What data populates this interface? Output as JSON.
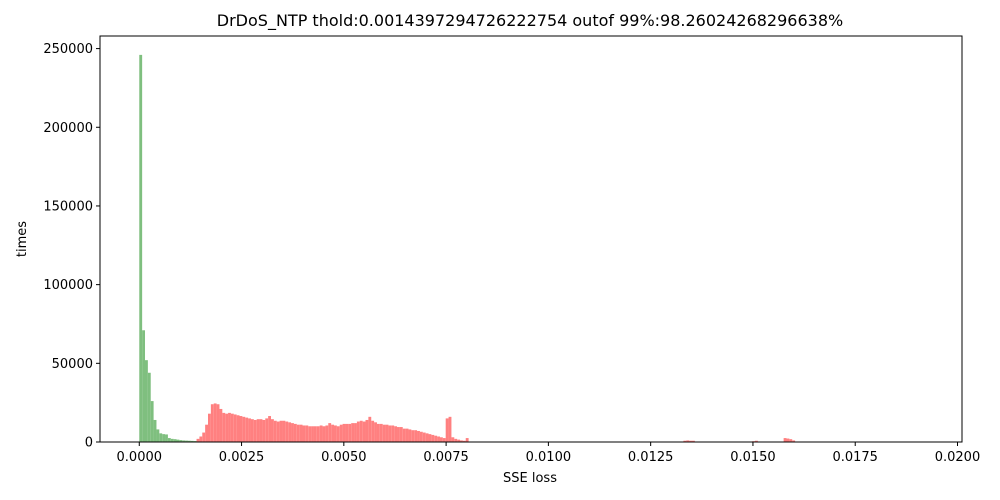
{
  "chart_data": {
    "type": "bar",
    "title": "DrDoS_NTP thold:0.0014397294726222754 outof 99%:98.26024268296638%",
    "xlabel": "SSE loss",
    "ylabel": "times",
    "xlim": [
      -0.00096,
      0.02011
    ],
    "ylim": [
      0,
      258000
    ],
    "bin_width": 7e-05,
    "x_ticks": [
      {
        "value": 0.0,
        "label": "0.0000"
      },
      {
        "value": 0.0025,
        "label": "0.0025"
      },
      {
        "value": 0.005,
        "label": "0.0050"
      },
      {
        "value": 0.0075,
        "label": "0.0075"
      },
      {
        "value": 0.01,
        "label": "0.0100"
      },
      {
        "value": 0.0125,
        "label": "0.0125"
      },
      {
        "value": 0.015,
        "label": "0.0150"
      },
      {
        "value": 0.0175,
        "label": "0.0175"
      },
      {
        "value": 0.02,
        "label": "0.0200"
      }
    ],
    "y_ticks": [
      {
        "value": 0,
        "label": "0"
      },
      {
        "value": 50000,
        "label": "50000"
      },
      {
        "value": 100000,
        "label": "100000"
      },
      {
        "value": 150000,
        "label": "150000"
      },
      {
        "value": 200000,
        "label": "200000"
      },
      {
        "value": 250000,
        "label": "250000"
      }
    ],
    "colors": {
      "normal": "#7fbf7f",
      "attack": "#ff8080"
    },
    "grid": false,
    "series": [
      {
        "key": "normal",
        "x": [
          0.0,
          7e-05,
          0.00014,
          0.00021,
          0.00028,
          0.00035,
          0.00042,
          0.00049,
          0.00056,
          0.00063,
          0.0007,
          0.00077,
          0.00084,
          0.00091,
          0.00098,
          0.00105,
          0.00112,
          0.00119,
          0.00126,
          0.00133,
          0.0014
        ],
        "values": [
          246000,
          71000,
          52000,
          44000,
          26000,
          14000,
          8000,
          5500,
          5000,
          4800,
          2500,
          2000,
          1800,
          1500,
          1200,
          1000,
          900,
          800,
          700,
          600,
          500
        ]
      },
      {
        "key": "attack",
        "x": [
          0.0014,
          0.00147,
          0.00154,
          0.00161,
          0.00168,
          0.00175,
          0.00182,
          0.00189,
          0.00196,
          0.00203,
          0.0021,
          0.00217,
          0.00224,
          0.00231,
          0.00238,
          0.00245,
          0.00252,
          0.00259,
          0.00266,
          0.00273,
          0.0028,
          0.00287,
          0.00294,
          0.00301,
          0.00308,
          0.00315,
          0.00322,
          0.00329,
          0.00336,
          0.00343,
          0.0035,
          0.00357,
          0.00364,
          0.00371,
          0.00378,
          0.00385,
          0.00392,
          0.00399,
          0.00406,
          0.00413,
          0.0042,
          0.00427,
          0.00434,
          0.00441,
          0.00448,
          0.00455,
          0.00462,
          0.00469,
          0.00476,
          0.00483,
          0.0049,
          0.00497,
          0.00504,
          0.00511,
          0.00518,
          0.00525,
          0.00532,
          0.00539,
          0.00546,
          0.00553,
          0.0056,
          0.00567,
          0.00574,
          0.00581,
          0.00588,
          0.00595,
          0.00602,
          0.00609,
          0.00616,
          0.00623,
          0.0063,
          0.00637,
          0.00644,
          0.00651,
          0.00658,
          0.00665,
          0.00672,
          0.00679,
          0.00686,
          0.00693,
          0.007,
          0.00707,
          0.00714,
          0.00721,
          0.00728,
          0.00735,
          0.00742,
          0.00749,
          0.00756,
          0.00763,
          0.0077,
          0.00777,
          0.00784,
          0.00791,
          0.00798,
          0.0133,
          0.01337,
          0.01344,
          0.01351,
          0.01498,
          0.01505,
          0.01575,
          0.01582,
          0.01589,
          0.01596
        ],
        "values": [
          2000,
          3500,
          6000,
          11000,
          18000,
          24000,
          24500,
          24000,
          21000,
          18500,
          18000,
          18500,
          18000,
          17500,
          17000,
          16500,
          16000,
          15500,
          15000,
          14500,
          14000,
          14500,
          14500,
          14000,
          15000,
          16500,
          14500,
          13500,
          13000,
          13500,
          13500,
          13000,
          12500,
          12000,
          11500,
          11000,
          11000,
          10500,
          10500,
          10000,
          10000,
          10000,
          10000,
          10500,
          10000,
          10500,
          12000,
          11000,
          10500,
          10000,
          11000,
          11500,
          11500,
          11500,
          12000,
          12000,
          13000,
          13500,
          13000,
          14000,
          16000,
          13500,
          12500,
          11500,
          11500,
          11000,
          11000,
          10500,
          10500,
          10000,
          9500,
          9500,
          8500,
          8500,
          8000,
          7500,
          7500,
          7000,
          6500,
          6000,
          5500,
          5000,
          4500,
          4000,
          3500,
          3000,
          2500,
          15000,
          16000,
          3000,
          2000,
          1500,
          1000,
          800,
          2500,
          800,
          1000,
          800,
          800,
          500,
          800,
          2500,
          2200,
          1800,
          1000
        ]
      }
    ]
  }
}
